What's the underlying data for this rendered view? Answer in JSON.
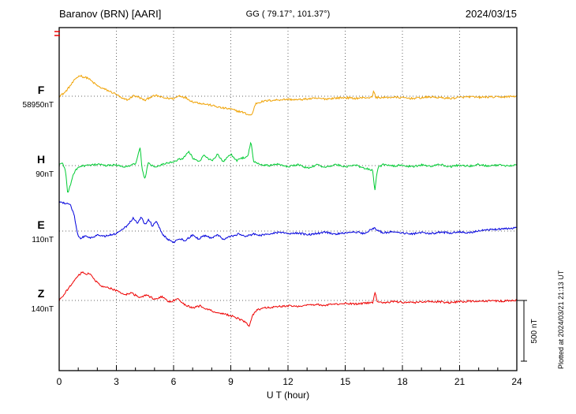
{
  "header": {
    "station": "Baranov (BRN)  [AARI]",
    "coords": "GG ( 79.17°, 101.37°)",
    "date": "2024/03/15"
  },
  "axes": {
    "x_label": "U T (hour)",
    "x_ticks": [
      "0",
      "3",
      "6",
      "9",
      "12",
      "15",
      "18",
      "21",
      "24"
    ],
    "x_min": 0,
    "x_max": 24,
    "scale_bar_label": "500 nT",
    "scale_bar_nT": 500
  },
  "footer_note": "Plotted at 2024/03/21 21:13 UT",
  "chart_data": {
    "type": "line",
    "title": "Baranov (BRN) [AARI] magnetogram 2024/03/15",
    "xlabel": "U T (hour)",
    "ylabel": "",
    "x_range_hours": [
      0,
      24
    ],
    "units": "nT relative to each trace baseline (dotted line)",
    "scale_reference_nT": 500,
    "grid": "dotted vertical lines every 3 hours; dotted baseline per trace",
    "series": [
      {
        "name": "F",
        "baseline_label": "58950nT",
        "color": "#f0a202",
        "points": [
          [
            0,
            0
          ],
          [
            0.3,
            30
          ],
          [
            0.6,
            90
          ],
          [
            0.9,
            150
          ],
          [
            1.1,
            170
          ],
          [
            1.3,
            155
          ],
          [
            1.5,
            150
          ],
          [
            1.8,
            110
          ],
          [
            2.1,
            75
          ],
          [
            2.5,
            50
          ],
          [
            3,
            15
          ],
          [
            3.3,
            -20
          ],
          [
            3.6,
            -30
          ],
          [
            3.9,
            5
          ],
          [
            4.2,
            -10
          ],
          [
            4.5,
            -35
          ],
          [
            4.8,
            -5
          ],
          [
            5.1,
            5
          ],
          [
            5.5,
            -15
          ],
          [
            6,
            -20
          ],
          [
            6.3,
            5
          ],
          [
            6.6,
            -10
          ],
          [
            7,
            -45
          ],
          [
            7.5,
            -60
          ],
          [
            8,
            -75
          ],
          [
            8.5,
            -95
          ],
          [
            9,
            -105
          ],
          [
            9.3,
            -120
          ],
          [
            9.6,
            -130
          ],
          [
            9.9,
            -150
          ],
          [
            10.1,
            -155
          ],
          [
            10.3,
            -60
          ],
          [
            10.6,
            -45
          ],
          [
            11,
            -35
          ],
          [
            11.5,
            -30
          ],
          [
            12,
            -25
          ],
          [
            12.5,
            -30
          ],
          [
            13,
            -22
          ],
          [
            13.5,
            -18
          ],
          [
            14,
            -22
          ],
          [
            14.5,
            -15
          ],
          [
            15,
            -12
          ],
          [
            15.5,
            -18
          ],
          [
            16,
            -12
          ],
          [
            16.4,
            -10
          ],
          [
            16.5,
            45
          ],
          [
            16.6,
            -10
          ],
          [
            17,
            -12
          ],
          [
            17.5,
            -8
          ],
          [
            18,
            -12
          ],
          [
            18.5,
            -18
          ],
          [
            19,
            -12
          ],
          [
            19.5,
            -6
          ],
          [
            20,
            -12
          ],
          [
            20.5,
            -18
          ],
          [
            21,
            -10
          ],
          [
            21.5,
            -5
          ],
          [
            22,
            -10
          ],
          [
            22.5,
            -6
          ],
          [
            23,
            -8
          ],
          [
            23.5,
            -4
          ],
          [
            24,
            0
          ]
        ]
      },
      {
        "name": "H",
        "baseline_label": "90nT",
        "color": "#00cc33",
        "points": [
          [
            0,
            10
          ],
          [
            0.2,
            20
          ],
          [
            0.35,
            -60
          ],
          [
            0.45,
            -240
          ],
          [
            0.55,
            -180
          ],
          [
            0.7,
            -90
          ],
          [
            0.9,
            -30
          ],
          [
            1.1,
            -5
          ],
          [
            1.5,
            0
          ],
          [
            2,
            10
          ],
          [
            2.5,
            0
          ],
          [
            3,
            5
          ],
          [
            3.5,
            -10
          ],
          [
            4,
            15
          ],
          [
            4.25,
            150
          ],
          [
            4.35,
            -30
          ],
          [
            4.5,
            -120
          ],
          [
            4.65,
            20
          ],
          [
            5,
            -10
          ],
          [
            5.5,
            15
          ],
          [
            6,
            35
          ],
          [
            6.5,
            60
          ],
          [
            6.8,
            120
          ],
          [
            7,
            60
          ],
          [
            7.3,
            30
          ],
          [
            7.6,
            80
          ],
          [
            8,
            40
          ],
          [
            8.3,
            90
          ],
          [
            8.6,
            30
          ],
          [
            9,
            95
          ],
          [
            9.3,
            40
          ],
          [
            9.6,
            60
          ],
          [
            9.9,
            80
          ],
          [
            10.05,
            200
          ],
          [
            10.2,
            30
          ],
          [
            10.5,
            10
          ],
          [
            11,
            0
          ],
          [
            11.5,
            15
          ],
          [
            12,
            -10
          ],
          [
            12.5,
            10
          ],
          [
            13,
            -20
          ],
          [
            13.5,
            5
          ],
          [
            14,
            -15
          ],
          [
            14.5,
            10
          ],
          [
            15,
            -10
          ],
          [
            15.5,
            5
          ],
          [
            16,
            -20
          ],
          [
            16.45,
            -40
          ],
          [
            16.55,
            -210
          ],
          [
            16.7,
            -20
          ],
          [
            17,
            10
          ],
          [
            17.5,
            -5
          ],
          [
            18,
            5
          ],
          [
            18.5,
            -10
          ],
          [
            19,
            5
          ],
          [
            19.5,
            -5
          ],
          [
            20,
            10
          ],
          [
            20.5,
            -10
          ],
          [
            21,
            5
          ],
          [
            21.5,
            -5
          ],
          [
            22,
            10
          ],
          [
            22.5,
            -5
          ],
          [
            23,
            5
          ],
          [
            23.5,
            0
          ],
          [
            24,
            5
          ]
        ]
      },
      {
        "name": "E",
        "baseline_label": "110nT",
        "color": "#0000dd",
        "points": [
          [
            0,
            240
          ],
          [
            0.3,
            230
          ],
          [
            0.6,
            210
          ],
          [
            0.8,
            120
          ],
          [
            0.95,
            -20
          ],
          [
            1.1,
            -60
          ],
          [
            1.4,
            -40
          ],
          [
            1.7,
            -55
          ],
          [
            2,
            -30
          ],
          [
            2.3,
            -45
          ],
          [
            2.6,
            -35
          ],
          [
            3,
            -20
          ],
          [
            3.3,
            10
          ],
          [
            3.6,
            50
          ],
          [
            3.9,
            110
          ],
          [
            4.1,
            60
          ],
          [
            4.3,
            120
          ],
          [
            4.5,
            55
          ],
          [
            4.7,
            95
          ],
          [
            4.9,
            40
          ],
          [
            5.1,
            85
          ],
          [
            5.4,
            -20
          ],
          [
            5.7,
            -70
          ],
          [
            6,
            -95
          ],
          [
            6.3,
            -60
          ],
          [
            6.6,
            -80
          ],
          [
            7,
            -30
          ],
          [
            7.3,
            -65
          ],
          [
            7.6,
            -35
          ],
          [
            8,
            -60
          ],
          [
            8.3,
            -30
          ],
          [
            8.6,
            -70
          ],
          [
            9,
            -45
          ],
          [
            9.4,
            -25
          ],
          [
            9.8,
            -45
          ],
          [
            10.2,
            -25
          ],
          [
            10.6,
            -35
          ],
          [
            11,
            -25
          ],
          [
            11.5,
            -10
          ],
          [
            12,
            -25
          ],
          [
            12.5,
            -15
          ],
          [
            13,
            -30
          ],
          [
            13.5,
            -20
          ],
          [
            14,
            -10
          ],
          [
            14.5,
            -25
          ],
          [
            15,
            -15
          ],
          [
            15.5,
            -5
          ],
          [
            16,
            -20
          ],
          [
            16.5,
            25
          ],
          [
            17,
            -15
          ],
          [
            17.5,
            -5
          ],
          [
            18,
            -15
          ],
          [
            18.5,
            -25
          ],
          [
            19,
            -10
          ],
          [
            19.5,
            -20
          ],
          [
            20,
            -10
          ],
          [
            20.5,
            -15
          ],
          [
            21,
            -5
          ],
          [
            21.5,
            -15
          ],
          [
            22,
            0
          ],
          [
            22.5,
            10
          ],
          [
            23,
            15
          ],
          [
            23.5,
            20
          ],
          [
            24,
            25
          ]
        ]
      },
      {
        "name": "Z",
        "baseline_label": "140nT",
        "color": "#ee0000",
        "points": [
          [
            0,
            0
          ],
          [
            0.3,
            60
          ],
          [
            0.6,
            120
          ],
          [
            0.9,
            190
          ],
          [
            1.2,
            230
          ],
          [
            1.4,
            215
          ],
          [
            1.6,
            220
          ],
          [
            1.9,
            160
          ],
          [
            2.2,
            120
          ],
          [
            2.6,
            105
          ],
          [
            3,
            80
          ],
          [
            3.4,
            45
          ],
          [
            3.8,
            60
          ],
          [
            4.2,
            25
          ],
          [
            4.6,
            45
          ],
          [
            5,
            10
          ],
          [
            5.4,
            30
          ],
          [
            5.8,
            -15
          ],
          [
            6.2,
            15
          ],
          [
            6.6,
            -35
          ],
          [
            7,
            -60
          ],
          [
            7.4,
            -45
          ],
          [
            7.8,
            -75
          ],
          [
            8.2,
            -95
          ],
          [
            8.6,
            -110
          ],
          [
            9,
            -125
          ],
          [
            9.4,
            -150
          ],
          [
            9.7,
            -170
          ],
          [
            9.95,
            -210
          ],
          [
            10.15,
            -120
          ],
          [
            10.4,
            -75
          ],
          [
            10.8,
            -60
          ],
          [
            11.2,
            -55
          ],
          [
            11.6,
            -50
          ],
          [
            12,
            -45
          ],
          [
            12.5,
            -50
          ],
          [
            13,
            -40
          ],
          [
            13.5,
            -35
          ],
          [
            14,
            -40
          ],
          [
            14.5,
            -30
          ],
          [
            15,
            -25
          ],
          [
            15.5,
            -30
          ],
          [
            16,
            -22
          ],
          [
            16.45,
            -15
          ],
          [
            16.55,
            70
          ],
          [
            16.7,
            -15
          ],
          [
            17,
            -20
          ],
          [
            17.5,
            -10
          ],
          [
            18,
            -15
          ],
          [
            18.5,
            -20
          ],
          [
            19,
            -12
          ],
          [
            19.5,
            -8
          ],
          [
            20,
            -12
          ],
          [
            20.5,
            -18
          ],
          [
            21,
            -10
          ],
          [
            21.5,
            -5
          ],
          [
            22,
            -8
          ],
          [
            22.5,
            -4
          ],
          [
            23,
            -6
          ],
          [
            23.5,
            -3
          ],
          [
            24,
            0
          ]
        ]
      }
    ]
  }
}
